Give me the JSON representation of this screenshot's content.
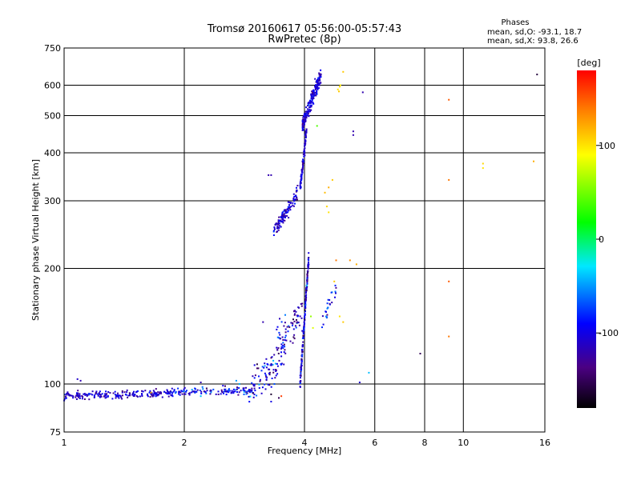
{
  "chart_data": {
    "type": "scatter",
    "title": "Tromsø 20160617 05:56:00-05:57:43",
    "subtitle": "RwPretec (8p)",
    "xlabel": "Frequency [MHz]",
    "ylabel": "Stationary phase Virtual Height [km]",
    "x_scale": "log",
    "y_scale": "log",
    "xlim": [
      1,
      16
    ],
    "ylim": [
      75,
      750
    ],
    "x_ticks": [
      1,
      2,
      4,
      6,
      8,
      10,
      16
    ],
    "x_tick_labels": [
      "1",
      "2",
      "4",
      "6",
      "8",
      "10",
      "16"
    ],
    "y_ticks": [
      75,
      100,
      200,
      300,
      400,
      500,
      600,
      750
    ],
    "y_tick_labels": [
      "75",
      "100",
      "200",
      "300",
      "400",
      "500",
      "600",
      "750"
    ],
    "grid": true,
    "phases_title": "Phases",
    "phase_stats_o": "mean, sd,O: -93.1, 18.7",
    "phase_stats_x": "mean, sd,X:  93.8, 26.6",
    "colorbar": {
      "label": "[deg]",
      "range": [
        -180,
        180
      ],
      "tick_values": [
        100,
        0,
        -100
      ],
      "tick_labels": [
        "100",
        "0",
        "-100"
      ]
    },
    "segments": [
      {
        "x0": 1.0,
        "x1": 1.9,
        "y0": 93,
        "y1": 95,
        "n": 200,
        "phase": -110,
        "phase_sd": 15,
        "jitter_y": 0.012
      },
      {
        "x0": 1.9,
        "x1": 3.0,
        "y0": 95,
        "y1": 96,
        "n": 120,
        "phase": -100,
        "phase_sd": 25,
        "jitter_y": 0.012
      },
      {
        "x0": 2.9,
        "x1": 3.6,
        "y0": 96,
        "y1": 120,
        "n": 90,
        "phase": -105,
        "phase_sd": 30,
        "jitter_y": 0.05
      },
      {
        "x0": 3.4,
        "x1": 3.95,
        "y0": 130,
        "y1": 155,
        "n": 70,
        "phase": -110,
        "phase_sd": 25,
        "jitter_y": 0.05
      },
      {
        "x0": 3.9,
        "x1": 4.1,
        "y0": 100,
        "y1": 215,
        "n": 170,
        "phase": -110,
        "phase_sd": 25,
        "jitter_y": 0.02
      },
      {
        "x0": 3.35,
        "x1": 3.85,
        "y0": 250,
        "y1": 315,
        "n": 120,
        "phase": -105,
        "phase_sd": 15,
        "jitter_y": 0.02
      },
      {
        "x0": 3.9,
        "x1": 4.05,
        "y0": 320,
        "y1": 460,
        "n": 90,
        "phase": -110,
        "phase_sd": 12,
        "jitter_y": 0.02
      },
      {
        "x0": 3.95,
        "x1": 4.4,
        "y0": 470,
        "y1": 640,
        "n": 220,
        "phase": -105,
        "phase_sd": 15,
        "jitter_y": 0.025
      },
      {
        "x0": 4.4,
        "x1": 4.8,
        "y0": 140,
        "y1": 180,
        "n": 25,
        "phase": -85,
        "phase_sd": 30,
        "jitter_y": 0.03
      }
    ],
    "extra_points": [
      {
        "x": 4.85,
        "y": 585,
        "phase": 100
      },
      {
        "x": 4.9,
        "y": 595,
        "phase": 105
      },
      {
        "x": 4.88,
        "y": 578,
        "phase": 110
      },
      {
        "x": 4.92,
        "y": 600,
        "phase": 95
      },
      {
        "x": 5.0,
        "y": 650,
        "phase": 110
      },
      {
        "x": 5.6,
        "y": 575,
        "phase": -120
      },
      {
        "x": 5.3,
        "y": 455,
        "phase": -120
      },
      {
        "x": 5.3,
        "y": 445,
        "phase": -120
      },
      {
        "x": 4.7,
        "y": 340,
        "phase": 110
      },
      {
        "x": 4.6,
        "y": 325,
        "phase": 120
      },
      {
        "x": 4.5,
        "y": 315,
        "phase": 115
      },
      {
        "x": 4.55,
        "y": 290,
        "phase": 105
      },
      {
        "x": 4.6,
        "y": 280,
        "phase": 100
      },
      {
        "x": 4.8,
        "y": 210,
        "phase": 140
      },
      {
        "x": 5.2,
        "y": 210,
        "phase": 130
      },
      {
        "x": 5.4,
        "y": 205,
        "phase": 120
      },
      {
        "x": 4.75,
        "y": 185,
        "phase": 110
      },
      {
        "x": 5.0,
        "y": 145,
        "phase": 110
      },
      {
        "x": 4.9,
        "y": 150,
        "phase": 100
      },
      {
        "x": 5.5,
        "y": 101,
        "phase": -110
      },
      {
        "x": 5.8,
        "y": 107,
        "phase": -40
      },
      {
        "x": 9.2,
        "y": 550,
        "phase": 150
      },
      {
        "x": 9.2,
        "y": 340,
        "phase": 140
      },
      {
        "x": 9.2,
        "y": 185,
        "phase": 150
      },
      {
        "x": 9.2,
        "y": 133,
        "phase": 140
      },
      {
        "x": 7.8,
        "y": 120,
        "phase": -150
      },
      {
        "x": 11.2,
        "y": 375,
        "phase": 105
      },
      {
        "x": 11.2,
        "y": 365,
        "phase": 100
      },
      {
        "x": 15.0,
        "y": 380,
        "phase": 120
      },
      {
        "x": 15.3,
        "y": 640,
        "phase": -160
      },
      {
        "x": 1.08,
        "y": 103,
        "phase": -110
      },
      {
        "x": 1.1,
        "y": 102,
        "phase": -120
      },
      {
        "x": 1.65,
        "y": 95,
        "phase": 120
      },
      {
        "x": 2.2,
        "y": 101,
        "phase": -120
      },
      {
        "x": 2.2,
        "y": 93,
        "phase": -40
      },
      {
        "x": 2.5,
        "y": 99,
        "phase": -100
      },
      {
        "x": 2.7,
        "y": 102,
        "phase": -50
      },
      {
        "x": 2.75,
        "y": 100,
        "phase": -45
      },
      {
        "x": 3.15,
        "y": 145,
        "phase": -120
      },
      {
        "x": 3.0,
        "y": 112,
        "phase": -100
      },
      {
        "x": 3.3,
        "y": 90,
        "phase": -100
      },
      {
        "x": 3.5,
        "y": 93,
        "phase": 160
      },
      {
        "x": 3.45,
        "y": 92,
        "phase": -150
      },
      {
        "x": 3.3,
        "y": 94,
        "phase": -165
      },
      {
        "x": 3.25,
        "y": 350,
        "phase": -120
      },
      {
        "x": 3.3,
        "y": 350,
        "phase": -120
      },
      {
        "x": 4.3,
        "y": 470,
        "phase": 40
      },
      {
        "x": 4.15,
        "y": 150,
        "phase": 60
      },
      {
        "x": 4.2,
        "y": 140,
        "phase": 80
      }
    ]
  }
}
